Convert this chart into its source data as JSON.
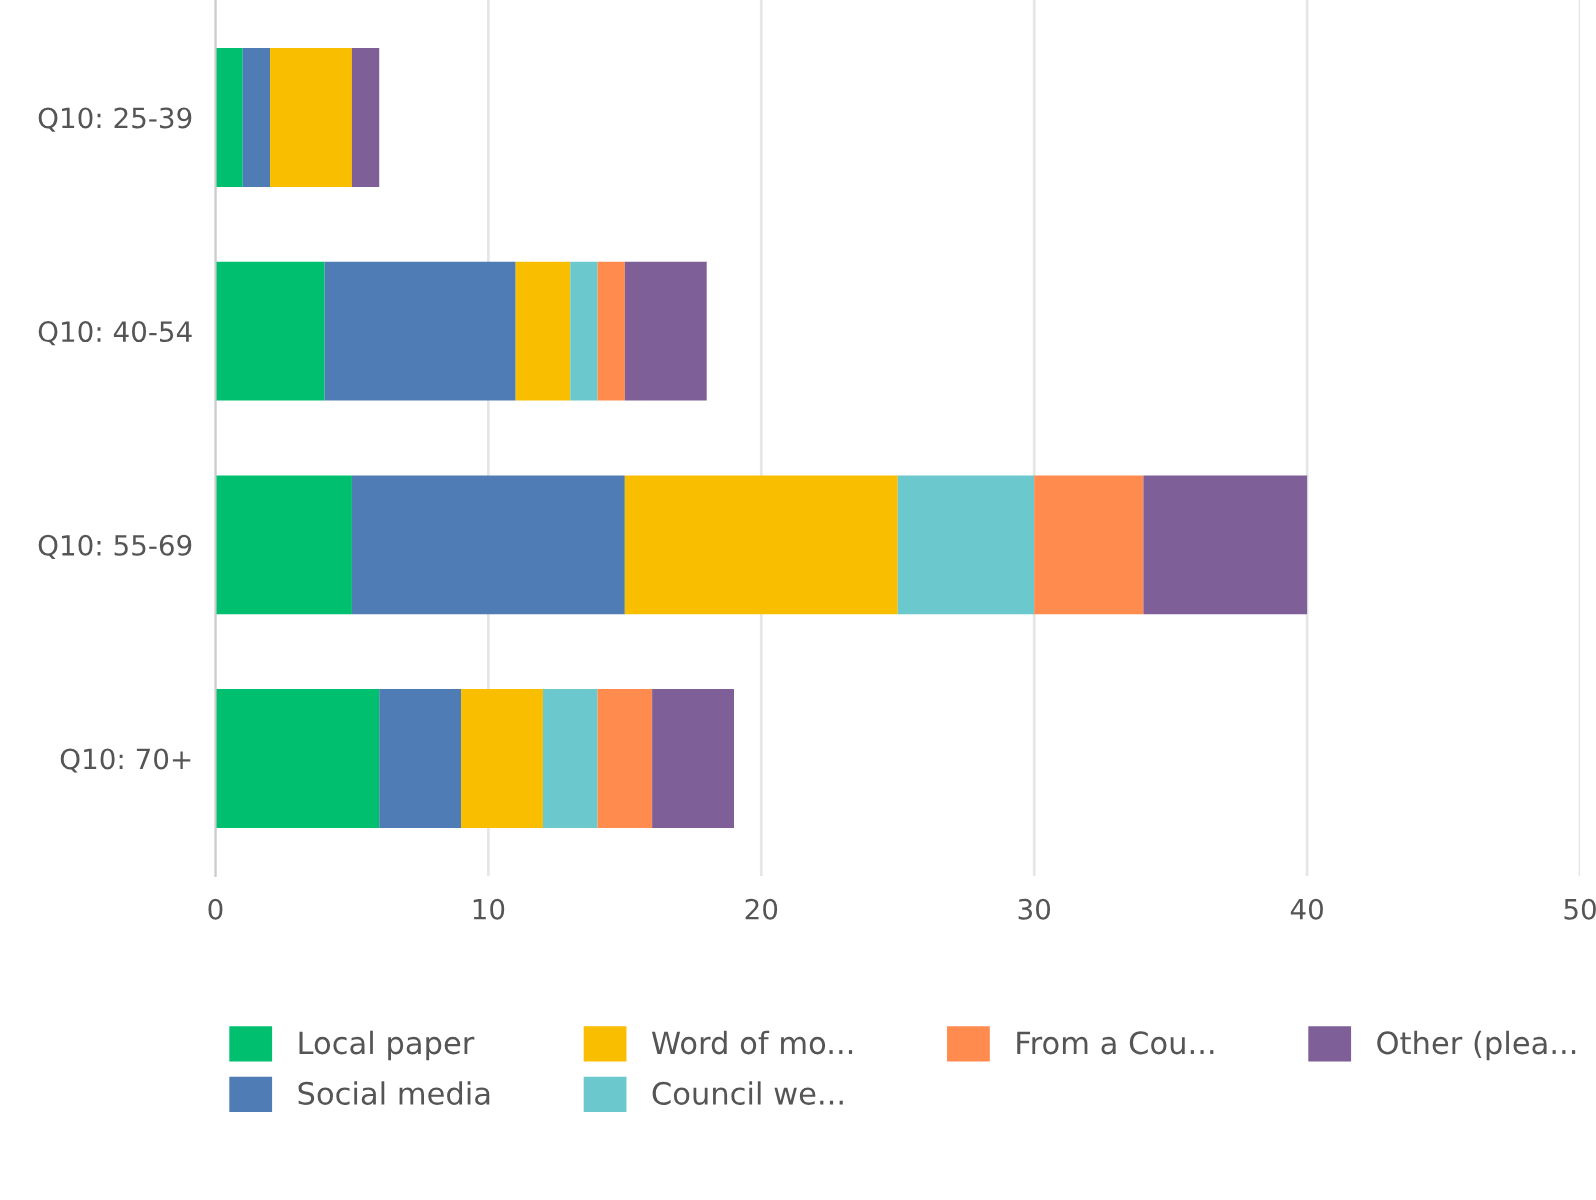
{
  "chart_data": {
    "type": "bar",
    "orientation": "horizontal",
    "stacked": true,
    "categories": [
      "Q10: 25-39",
      "Q10: 40-54",
      "Q10: 55-69",
      "Q10: 70+"
    ],
    "series": [
      {
        "name": "Local paper",
        "color": "#00bf6f",
        "values": [
          1,
          4,
          5,
          6
        ]
      },
      {
        "name": "Social media",
        "color": "#507cb6",
        "values": [
          1,
          7,
          10,
          3
        ]
      },
      {
        "name": "Word of mo...",
        "color": "#f9be00",
        "values": [
          3,
          2,
          10,
          3
        ]
      },
      {
        "name": "Council we...",
        "color": "#6bc8cd",
        "values": [
          0,
          1,
          5,
          2
        ]
      },
      {
        "name": "From a Cou...",
        "color": "#ff8b4f",
        "values": [
          0,
          1,
          4,
          2
        ]
      },
      {
        "name": "Other (plea...",
        "color": "#7f5f97",
        "values": [
          1,
          3,
          6,
          3
        ]
      }
    ],
    "xlim": [
      0,
      50
    ],
    "xticks": [
      0,
      10,
      20,
      30,
      40,
      50
    ],
    "grid": "x",
    "legend": "bottom left"
  }
}
